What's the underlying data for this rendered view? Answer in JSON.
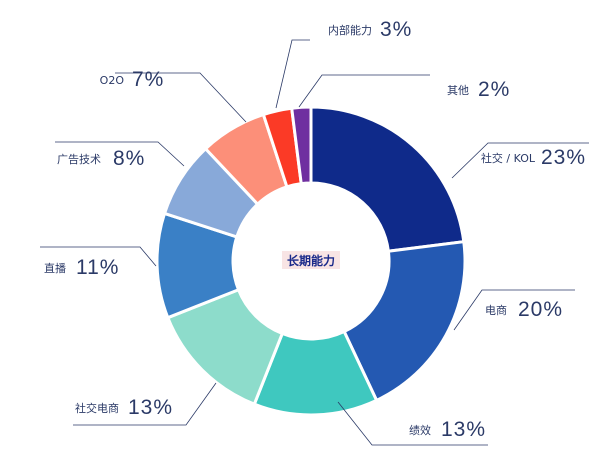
{
  "chart_data": {
    "type": "pie",
    "title": "",
    "center_label": "长期能力",
    "donut": true,
    "start_angle_deg": 0,
    "direction": "clockwise",
    "slices": [
      {
        "label": "社交 / KOL",
        "value": 23,
        "pct_text": "23%",
        "color": "#0f2a8a"
      },
      {
        "label": "电商",
        "value": 20,
        "pct_text": "20%",
        "color": "#2459b2"
      },
      {
        "label": "绩效",
        "value": 13,
        "pct_text": "13%",
        "color": "#3fc8bf"
      },
      {
        "label": "社交电商",
        "value": 13,
        "pct_text": "13%",
        "color": "#8ddccb"
      },
      {
        "label": "直播",
        "value": 11,
        "pct_text": "11%",
        "color": "#3a80c6"
      },
      {
        "label": "广告技术",
        "value": 8,
        "pct_text": "8%",
        "color": "#88a9d9"
      },
      {
        "label": "O2O",
        "value": 7,
        "pct_text": "7%",
        "color": "#fc8f79"
      },
      {
        "label": "内部能力",
        "value": 3,
        "pct_text": "3%",
        "color": "#fb3a26"
      },
      {
        "label": "其他",
        "value": 2,
        "pct_text": "2%",
        "color": "#6f2fa0"
      }
    ]
  }
}
